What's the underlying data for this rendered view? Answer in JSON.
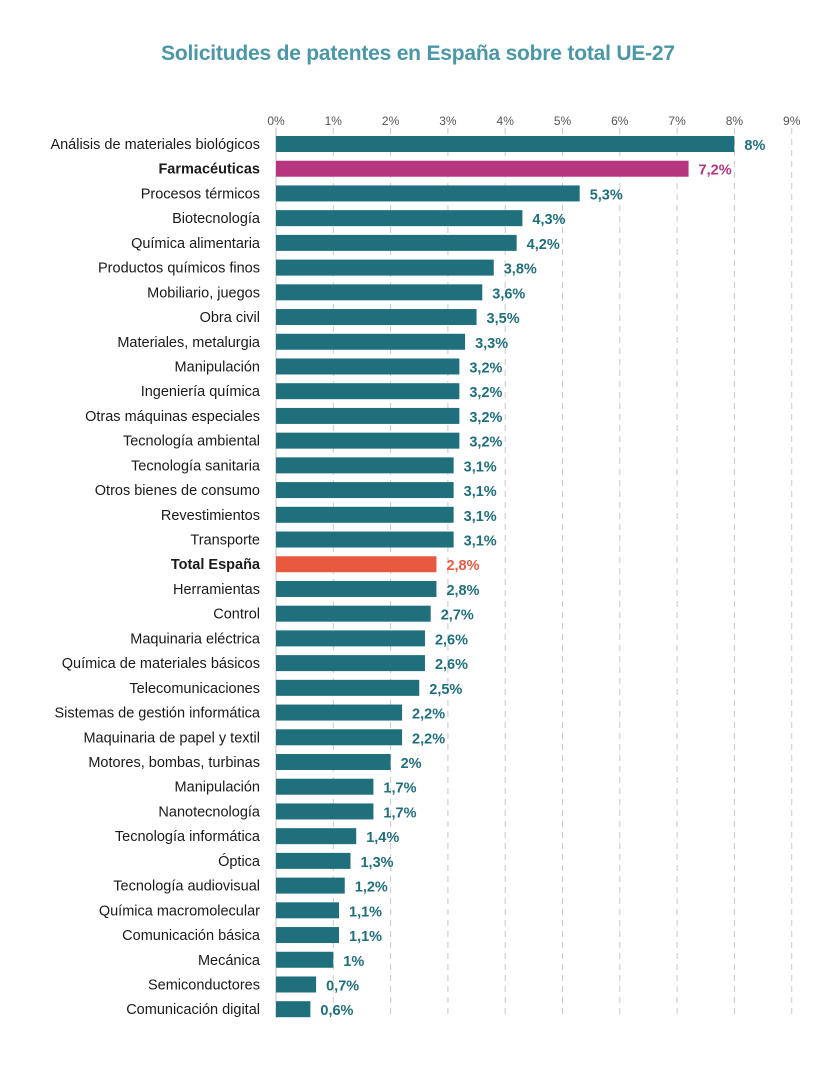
{
  "chart_data": {
    "type": "bar",
    "orientation": "horizontal",
    "title": "Solicitudes de patentes en España sobre total UE-27",
    "xlim": [
      0,
      9
    ],
    "x_ticks": [
      "0%",
      "1%",
      "2%",
      "3%",
      "4%",
      "5%",
      "6%",
      "7%",
      "8%",
      "9%"
    ],
    "grid": true,
    "categories": [
      "Análisis de materiales biológicos",
      "Farmacéuticas",
      "Procesos térmicos",
      "Biotecnología",
      "Química alimentaria",
      "Productos químicos finos",
      "Mobiliario, juegos",
      "Obra civil",
      "Materiales, metalurgia",
      "Manipulación",
      "Ingeniería química",
      "Otras máquinas especiales",
      "Tecnología ambiental",
      "Tecnología sanitaria",
      "Otros bienes de consumo",
      "Revestimientos",
      "Transporte",
      "Total España",
      "Herramientas",
      "Control",
      "Maquinaria eléctrica",
      "Química de materiales básicos",
      "Telecomunicaciones",
      "Sistemas de gestión informática",
      "Maquinaria de papel y textil",
      "Motores, bombas, turbinas",
      "Manipulación",
      "Nanotecnología",
      "Tecnología informática",
      "Óptica",
      "Tecnología audiovisual",
      "Química macromolecular",
      "Comunicación básica",
      "Mecánica",
      "Semiconductores",
      "Comunicación digital"
    ],
    "values": [
      8,
      7.2,
      5.3,
      4.3,
      4.2,
      3.8,
      3.6,
      3.5,
      3.3,
      3.2,
      3.2,
      3.2,
      3.2,
      3.1,
      3.1,
      3.1,
      3.1,
      2.8,
      2.8,
      2.7,
      2.6,
      2.6,
      2.5,
      2.2,
      2.2,
      2,
      1.7,
      1.7,
      1.4,
      1.3,
      1.2,
      1.1,
      1.1,
      1,
      0.7,
      0.6
    ],
    "value_labels": [
      "8%",
      "7,2%",
      "5,3%",
      "4,3%",
      "4,2%",
      "3,8%",
      "3,6%",
      "3,5%",
      "3,3%",
      "3,2%",
      "3,2%",
      "3,2%",
      "3,2%",
      "3,1%",
      "3,1%",
      "3,1%",
      "3,1%",
      "2,8%",
      "2,8%",
      "2,7%",
      "2,6%",
      "2,6%",
      "2,5%",
      "2,2%",
      "2,2%",
      "2%",
      "1,7%",
      "1,7%",
      "1,4%",
      "1,3%",
      "1,2%",
      "1,1%",
      "1,1%",
      "1%",
      "0,7%",
      "0,6%"
    ],
    "colors": {
      "default": "#1f6f7d",
      "highlights": {
        "Farmacéuticas": "#b5357f",
        "Total España": "#e85a40"
      },
      "title": "#4a97a8",
      "grid": "#c9c9c9"
    }
  }
}
